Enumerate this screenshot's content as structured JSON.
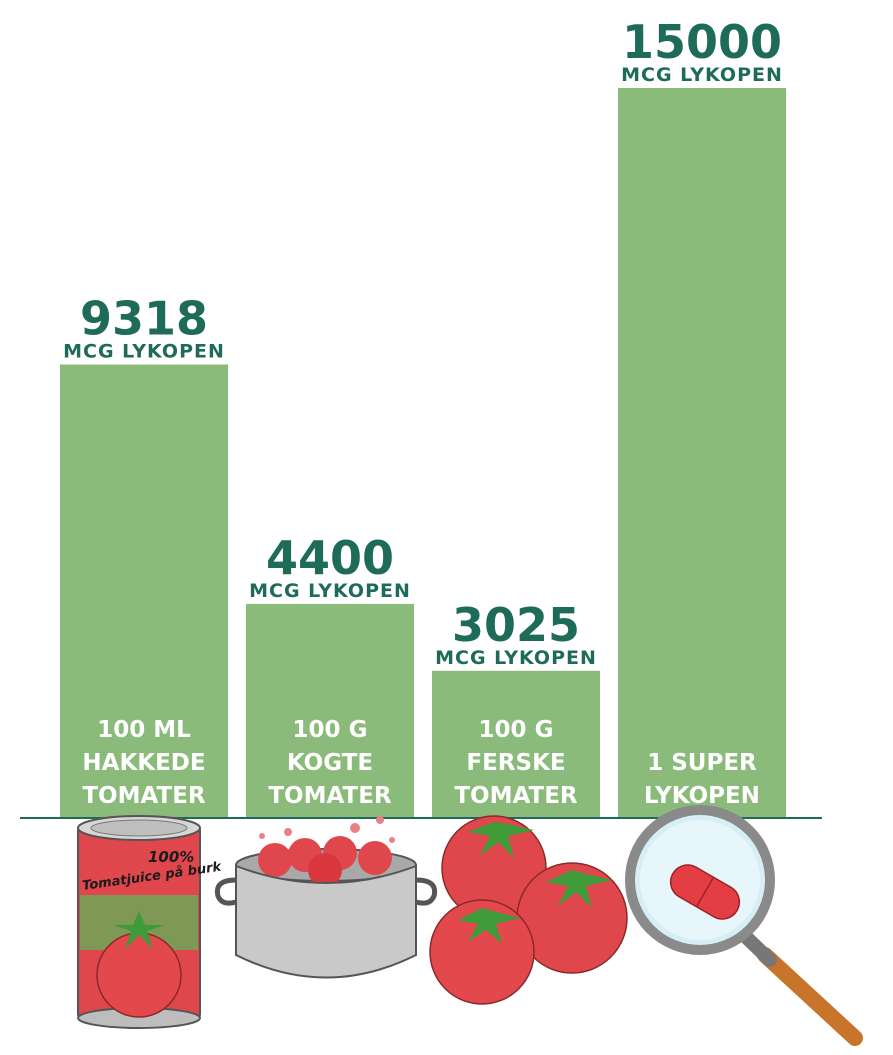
{
  "chart_data": {
    "type": "bar",
    "unit_label": "MCG LYKOPEN",
    "categories": [
      [
        "100 ML",
        "HAKKEDE",
        "TOMATER"
      ],
      [
        "100 G",
        "KOGTE",
        "TOMATER"
      ],
      [
        "100 G",
        "FERSKE",
        "TOMATER"
      ],
      [
        "1 SUPER",
        "LYKOPEN"
      ]
    ],
    "series": [
      {
        "values": [
          9318,
          4400,
          3025,
          15000
        ]
      }
    ],
    "ylim": [
      0,
      15000
    ],
    "grid": false,
    "legend": "none"
  },
  "colors": {
    "bar": "#8abb7b",
    "value_text": "#1f6b5a",
    "category_text": "#ffffff",
    "baseline": "#1f6b5a",
    "tomato": "#e0474c",
    "leaf": "#3f9a3a",
    "pot": "#c9c9c9"
  },
  "icons": [
    "tomato-juice-can-icon",
    "cooking-pot-icon",
    "fresh-tomatoes-icon",
    "magnifying-glass-capsule-icon"
  ],
  "can_label": {
    "line1": "100%",
    "line2": "Tomatjuice på burk"
  }
}
